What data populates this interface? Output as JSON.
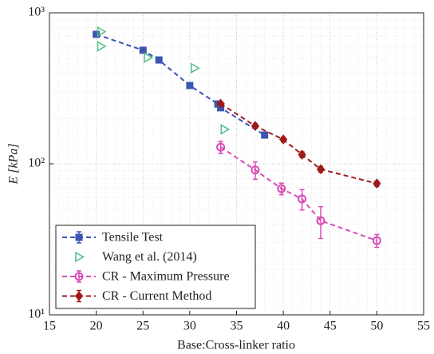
{
  "chart_data": {
    "type": "scatter",
    "y_scale": "log",
    "grid": true,
    "legend": "lower left",
    "x_label": "Base:Cross-linker ratio",
    "y_label": "E [kPa]",
    "xlim": [
      15,
      55
    ],
    "xticks": [
      15,
      20,
      25,
      30,
      35,
      40,
      45,
      50,
      55
    ],
    "ylim": [
      10,
      1000
    ],
    "yticks": [
      {
        "value": 10,
        "label": "10¹"
      },
      {
        "value": 100,
        "label": "10²"
      },
      {
        "value": 1000,
        "label": "10³"
      }
    ],
    "series": [
      {
        "name": "Tensile Test",
        "color": "#3a56b0",
        "marker": "square",
        "line": "dashed",
        "x": [
          20,
          25,
          26.7,
          30,
          33,
          33.3,
          38
        ],
        "values": [
          720,
          565,
          487,
          330,
          249,
          235,
          155
        ],
        "errors": [
          25,
          20,
          15,
          12,
          8,
          8,
          6
        ]
      },
      {
        "name": "Wang et al. (2014)",
        "color": "#4fbf8a",
        "marker": "triangle",
        "line": "none",
        "x": [
          20.5,
          20.5,
          25.5,
          30.5,
          33.7
        ],
        "values": [
          750,
          600,
          505,
          430,
          169
        ]
      },
      {
        "name": "CR - Maximum Pressure",
        "color": "#d84bb5",
        "marker": "circle",
        "line": "dashed",
        "x": [
          33.3,
          37,
          39.8,
          42,
          44,
          50
        ],
        "values": [
          129,
          91,
          68.5,
          58.5,
          42,
          31
        ],
        "errors": [
          12,
          12,
          6,
          9,
          10,
          3
        ]
      },
      {
        "name": "CR - Current Method",
        "color": "#9e1b1b",
        "marker": "diamond",
        "line": "dashed",
        "x": [
          33.3,
          37,
          40,
          42,
          44,
          50
        ],
        "values": [
          250,
          178,
          145,
          115,
          92,
          74
        ],
        "errors": [
          8,
          6,
          5,
          5,
          4,
          3
        ]
      }
    ]
  }
}
